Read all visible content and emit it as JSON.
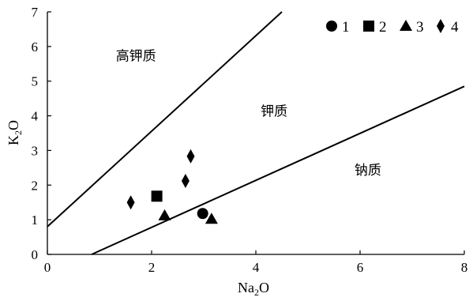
{
  "chart_data": {
    "type": "scatter",
    "title": "",
    "xlabel": {
      "base": "Na",
      "sub": "2",
      "tail": "O"
    },
    "ylabel": {
      "base": "K",
      "sub": "2",
      "tail": "O"
    },
    "xlim": [
      0,
      8
    ],
    "ylim": [
      0,
      7
    ],
    "xticks": [
      "0",
      "2",
      "4",
      "6",
      "8"
    ],
    "yticks": [
      "0",
      "1",
      "2",
      "3",
      "4",
      "5",
      "6",
      "7"
    ],
    "grid": false,
    "legend_position": "top-right",
    "boundary_lines": [
      {
        "name": "upper",
        "points": [
          [
            0,
            0.8
          ],
          [
            4.5,
            7
          ]
        ]
      },
      {
        "name": "lower",
        "points": [
          [
            0.85,
            0
          ],
          [
            8,
            4.85
          ]
        ]
      }
    ],
    "regions": [
      {
        "label": "高钾质",
        "at": [
          1.7,
          5.6
        ]
      },
      {
        "label": "钾质",
        "at": [
          4.35,
          4.0
        ]
      },
      {
        "label": "钠质",
        "at": [
          6.15,
          2.3
        ]
      }
    ],
    "series": [
      {
        "name": "1",
        "marker": "circle",
        "points": [
          [
            2.98,
            1.18
          ]
        ]
      },
      {
        "name": "2",
        "marker": "square",
        "points": [
          [
            2.1,
            1.68
          ]
        ]
      },
      {
        "name": "3",
        "marker": "triangle",
        "points": [
          [
            2.25,
            1.12
          ],
          [
            3.15,
            1.02
          ]
        ]
      },
      {
        "name": "4",
        "marker": "diamond",
        "points": [
          [
            1.6,
            1.5
          ],
          [
            2.65,
            2.12
          ],
          [
            2.75,
            2.83
          ]
        ]
      }
    ]
  }
}
